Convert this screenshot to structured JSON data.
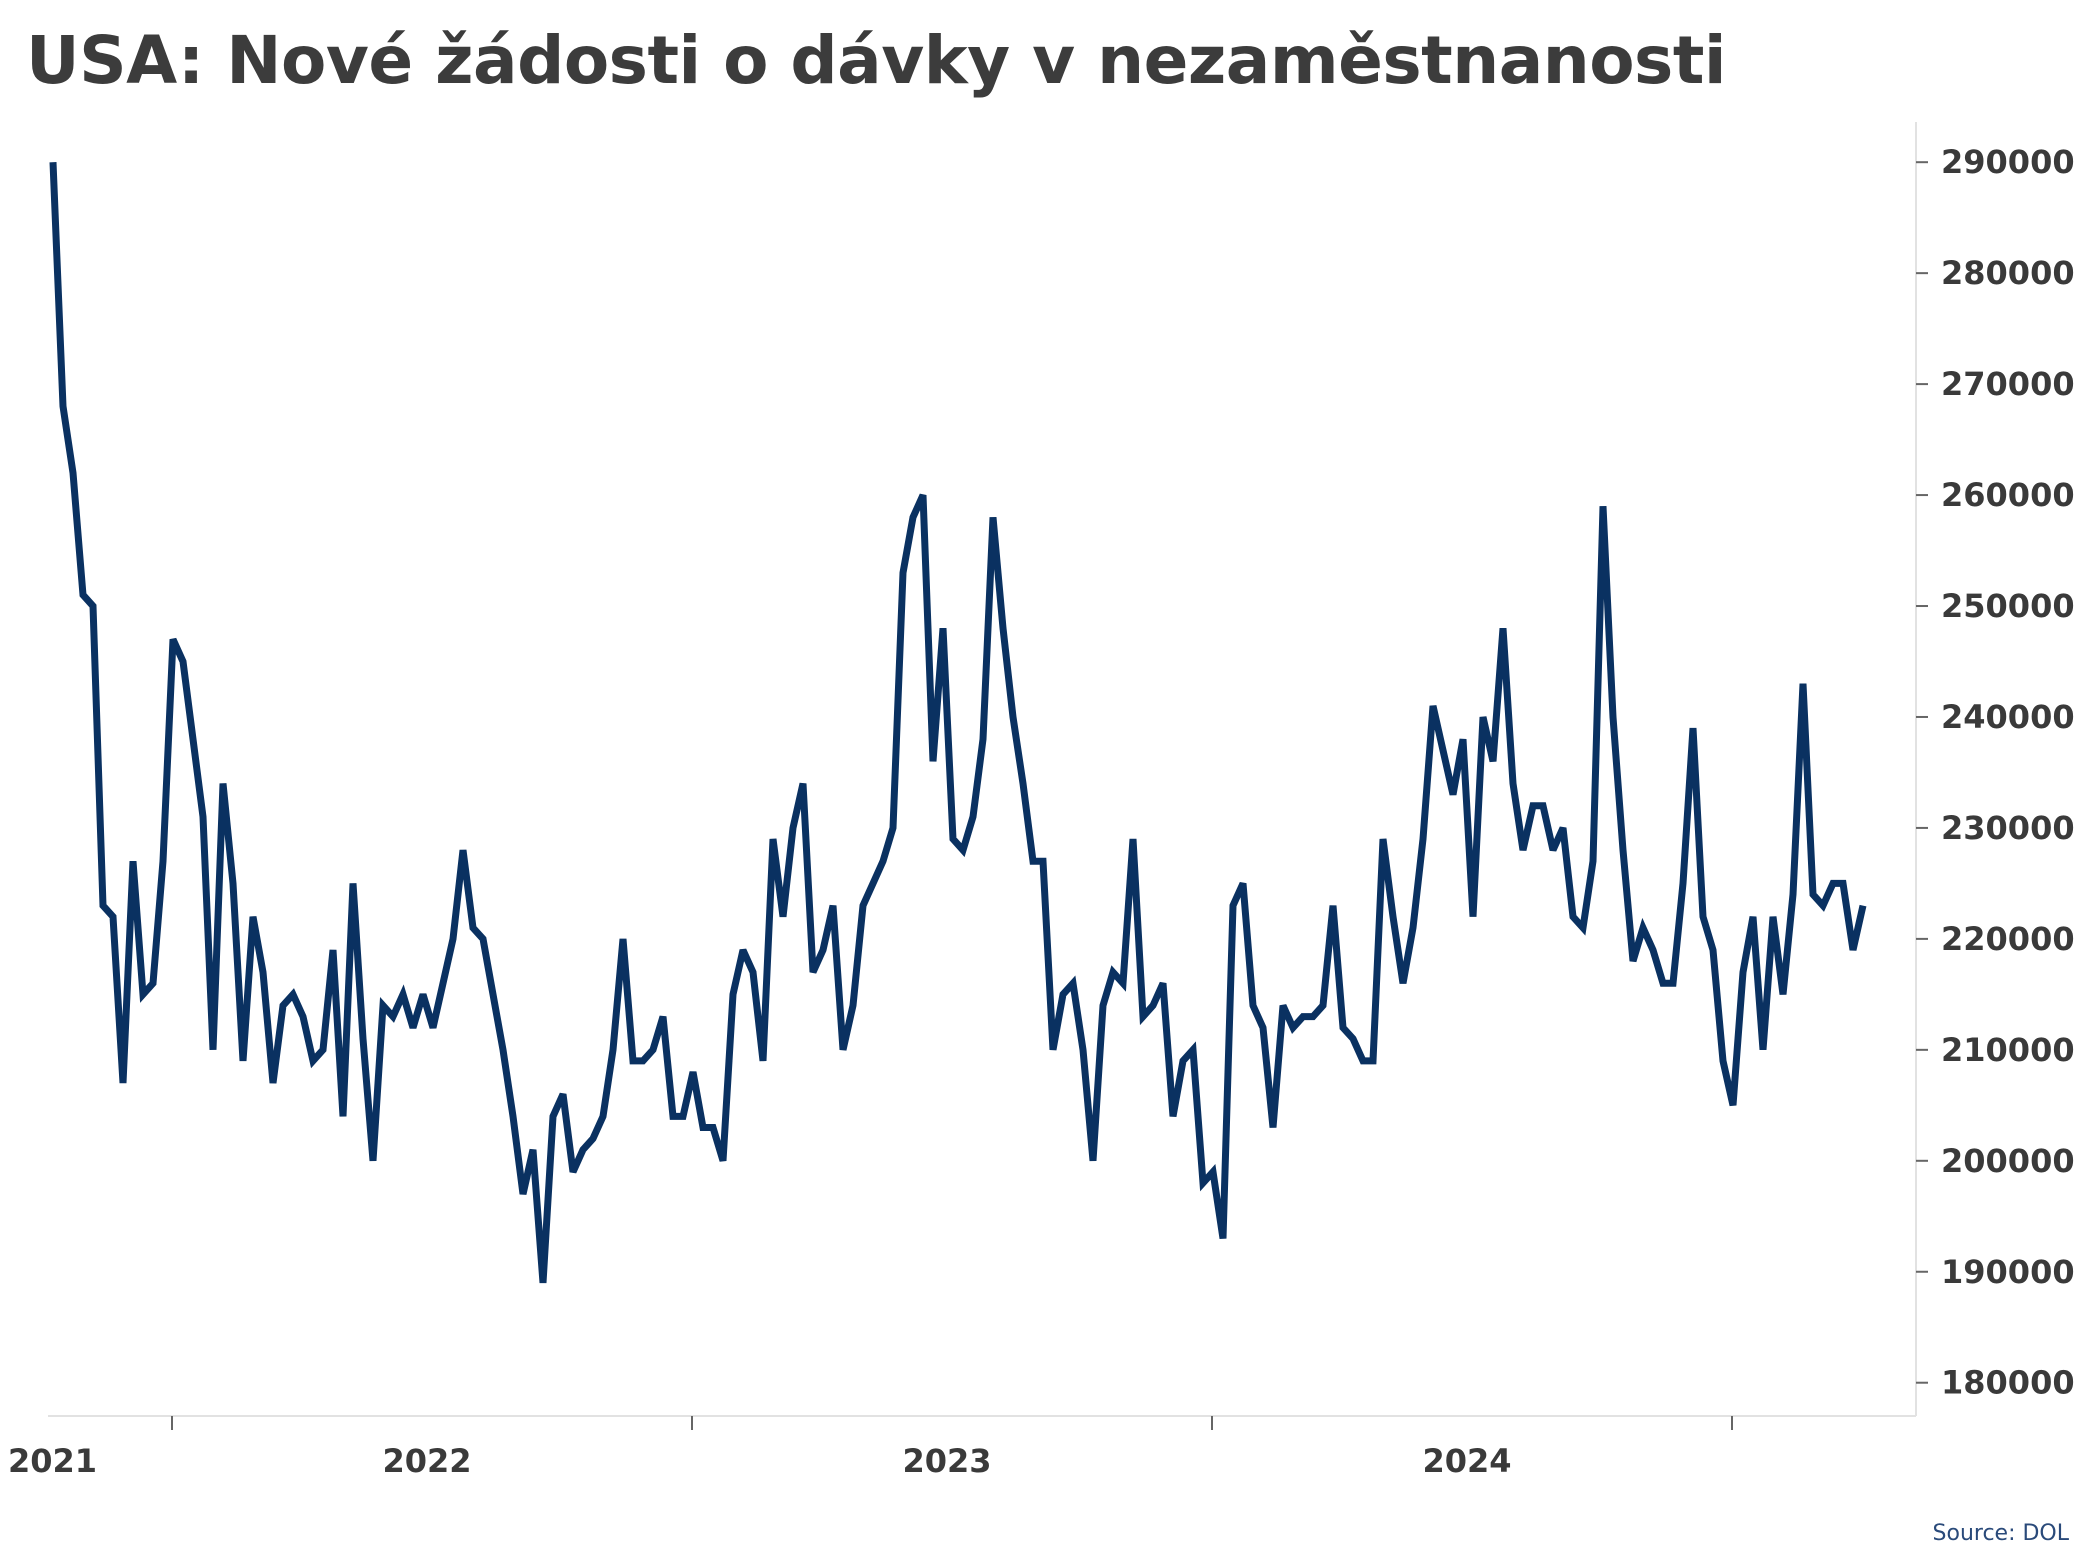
{
  "colors": {
    "line": "#0a3161",
    "axis": "#e2e2e2",
    "tick": "#666666",
    "text": "#3a3a3a"
  },
  "chart_data": {
    "type": "line",
    "title": "USA: Nové žádosti o dávky v nezaměstnanosti",
    "xlabel": "",
    "ylabel": "",
    "y_axis_position": "right",
    "grid": false,
    "ylim": [
      177000,
      292000
    ],
    "yticks": [
      180000,
      190000,
      200000,
      210000,
      220000,
      230000,
      240000,
      250000,
      260000,
      270000,
      280000,
      290000
    ],
    "ytick_labels": [
      "180000",
      "190000",
      "200000",
      "210000",
      "220000",
      "230000",
      "240000",
      "250000",
      "260000",
      "270000",
      "280000",
      "290000"
    ],
    "x_range_weeks": [
      0,
      183
    ],
    "xtick_labels": [
      {
        "label": "2021",
        "week": 0
      },
      {
        "label": "2022",
        "week": 37.5
      },
      {
        "label": "2023",
        "week": 89.5
      },
      {
        "label": "2024",
        "week": 141.5
      }
    ],
    "xtick_marks_weeks": [
      12,
      64,
      116,
      168
    ],
    "series": [
      {
        "name": "",
        "values": [
          290000,
          268000,
          262000,
          251000,
          250000,
          223000,
          222000,
          207000,
          227000,
          215000,
          216000,
          227000,
          247000,
          245000,
          238000,
          231000,
          210000,
          234000,
          225000,
          209000,
          222000,
          217000,
          207000,
          214000,
          215000,
          213000,
          209000,
          210000,
          219000,
          204000,
          225000,
          211000,
          200000,
          214000,
          213000,
          215000,
          212000,
          215000,
          212000,
          216000,
          220000,
          228000,
          221000,
          220000,
          215000,
          210000,
          204000,
          197000,
          201000,
          189000,
          204000,
          206000,
          199000,
          201000,
          202000,
          204000,
          210000,
          220000,
          209000,
          209000,
          210000,
          213000,
          204000,
          204000,
          208000,
          203000,
          203000,
          200000,
          215000,
          219000,
          217000,
          209000,
          229000,
          222000,
          230000,
          234000,
          217000,
          219000,
          223000,
          210000,
          214000,
          223000,
          225000,
          227000,
          230000,
          253000,
          258000,
          260000,
          236000,
          248000,
          229000,
          228000,
          231000,
          238000,
          258000,
          248000,
          240000,
          234000,
          227000,
          227000,
          210000,
          215000,
          216000,
          210000,
          200000,
          214000,
          217000,
          216000,
          229000,
          213000,
          214000,
          216000,
          204000,
          209000,
          210000,
          198000,
          199000,
          193000,
          223000,
          225000,
          214000,
          212000,
          203000,
          214000,
          212000,
          213000,
          213000,
          214000,
          223000,
          212000,
          211000,
          209000,
          209000,
          229000,
          222000,
          216000,
          221000,
          229000,
          241000,
          237000,
          233000,
          238000,
          222000,
          240000,
          236000,
          248000,
          234000,
          228000,
          232000,
          232000,
          228000,
          230000,
          222000,
          221000,
          227000,
          259000,
          240000,
          228000,
          218000,
          221000,
          219000,
          216000,
          216000,
          225000,
          239000,
          222000,
          219000,
          209000,
          205000,
          217000,
          222000,
          210000,
          222000,
          215000,
          224000,
          243000,
          224000,
          223000,
          225000,
          225000,
          219000,
          223000
        ]
      }
    ]
  },
  "source": "Source: DOL"
}
